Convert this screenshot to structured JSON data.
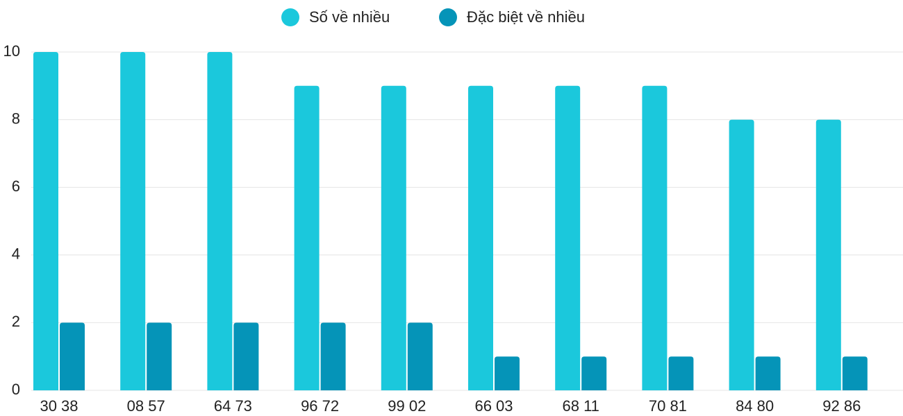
{
  "chart_data": {
    "type": "bar",
    "categories": [
      "30 38",
      "08 57",
      "64 73",
      "96 72",
      "99 02",
      "66 03",
      "68 11",
      "70 81",
      "84 80",
      "92 86"
    ],
    "series": [
      {
        "name": "Số về nhiều",
        "color": "#1bc8dc",
        "values": [
          10,
          10,
          10,
          9,
          9,
          9,
          9,
          9,
          8,
          8
        ]
      },
      {
        "name": "Đặc biệt về nhiều",
        "color": "#0594b8",
        "values": [
          2,
          2,
          2,
          2,
          2,
          1,
          1,
          1,
          1,
          1
        ]
      }
    ],
    "ylim": [
      0,
      10
    ],
    "yticks": [
      0,
      2,
      4,
      6,
      8,
      10
    ],
    "grid": true
  }
}
